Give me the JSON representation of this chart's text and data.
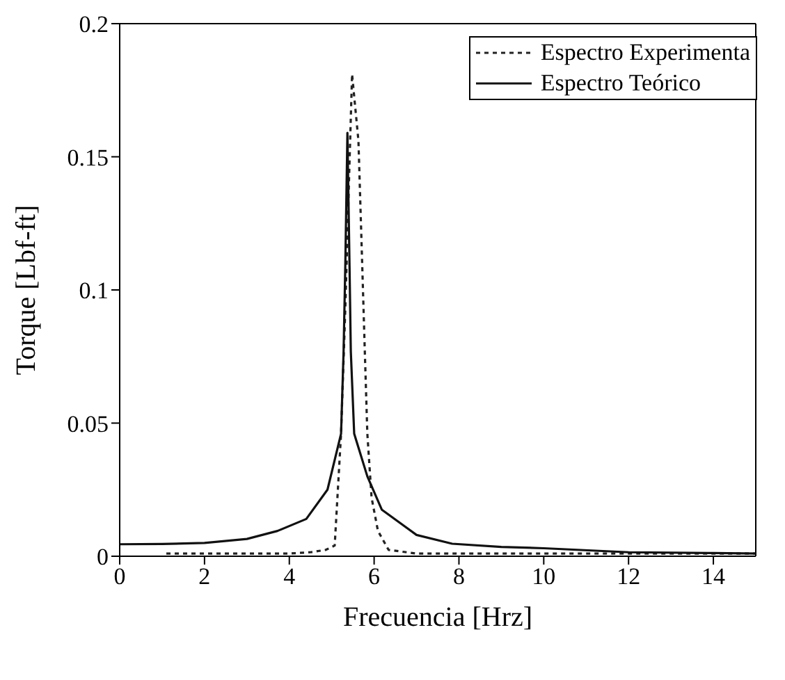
{
  "chart_data": {
    "type": "line",
    "xlabel": "Frecuencia [Hrz]",
    "ylabel": "Torque [Lbf-ft]",
    "xlim": [
      0,
      15
    ],
    "xticks": [
      0,
      2,
      4,
      6,
      8,
      10,
      12,
      14
    ],
    "ylim": [
      0,
      0.2
    ],
    "yticks": [
      0,
      0.05,
      0.1,
      0.15,
      0.2
    ],
    "grid": false,
    "legend": "top right",
    "marker": "none",
    "series": [
      {
        "name": "Espectro Experimenta",
        "color": "#222222",
        "line_style": "dotted",
        "x": [
          1.1,
          2,
          3,
          4,
          4.5,
          4.86,
          5.07,
          5.22,
          5.32,
          5.48,
          5.63,
          5.72,
          5.78,
          5.84,
          5.94,
          6.09,
          6.34,
          7,
          8,
          10,
          12,
          14,
          15
        ],
        "values": [
          0.001,
          0.001,
          0.001,
          0.001,
          0.0015,
          0.0024,
          0.004,
          0.046,
          0.093,
          0.181,
          0.156,
          0.109,
          0.077,
          0.046,
          0.022,
          0.0095,
          0.0024,
          0.001,
          0.001,
          0.001,
          0.001,
          0.001,
          0.001
        ]
      },
      {
        "name": "Espectro Teórico",
        "color": "#111111",
        "line_style": "solid",
        "x": [
          0,
          1,
          2,
          3,
          3.72,
          4.4,
          4.9,
          5.22,
          5.28,
          5.32,
          5.37,
          5.42,
          5.45,
          5.53,
          5.84,
          6.18,
          7,
          7.84,
          9,
          10,
          12,
          14,
          15
        ],
        "values": [
          0.0045,
          0.0046,
          0.005,
          0.0065,
          0.0095,
          0.014,
          0.025,
          0.046,
          0.077,
          0.109,
          0.159,
          0.109,
          0.077,
          0.046,
          0.03,
          0.0175,
          0.008,
          0.0047,
          0.0035,
          0.003,
          0.0015,
          0.0012,
          0.001
        ]
      }
    ]
  }
}
